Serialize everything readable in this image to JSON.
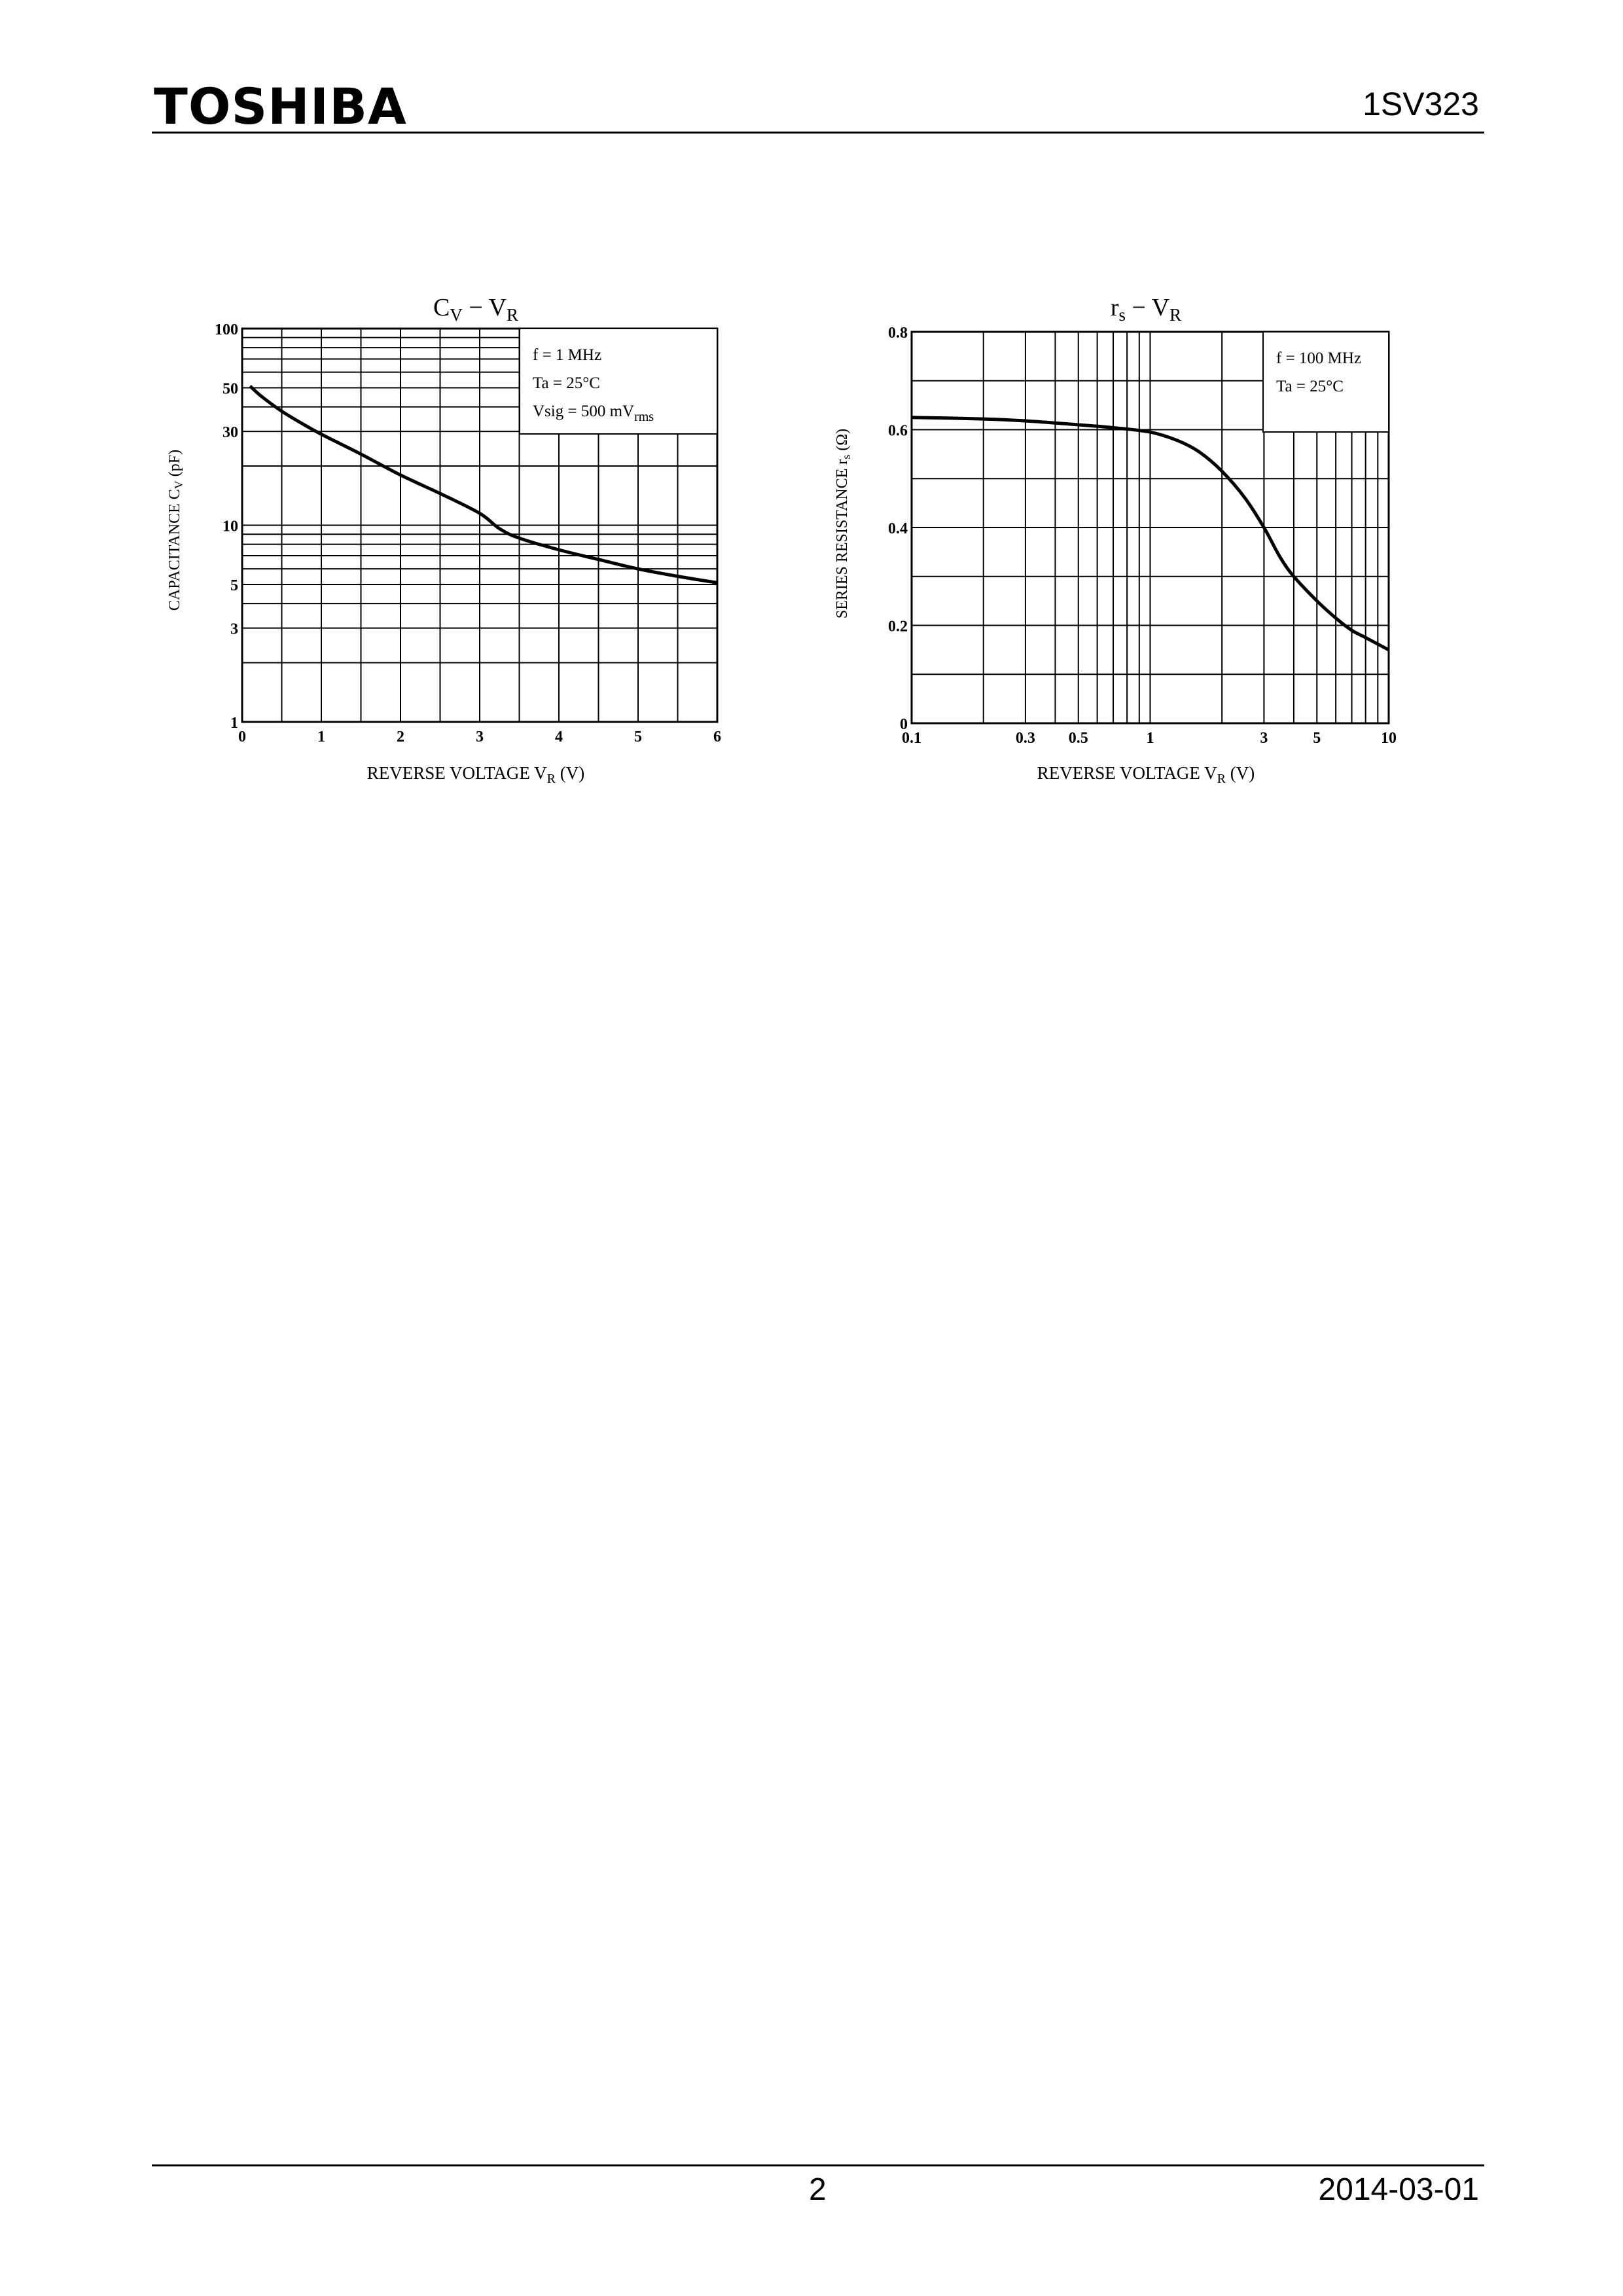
{
  "header": {
    "brand": "TOSHIBA",
    "part_number": "1SV323"
  },
  "footer": {
    "page": "2",
    "date": "2014-03-01"
  },
  "chart_data": [
    {
      "type": "line",
      "title": {
        "main": "C",
        "sub1": "V",
        "dash": " − V",
        "sub2": "R"
      },
      "xlabel": {
        "main": "REVERSE VOLTAGE   V",
        "sub": "R",
        "unit": "   (V)"
      },
      "ylabel": {
        "main": "CAPACITANCE   C",
        "sub": "V",
        "unit": "   (pF)"
      },
      "x_scale": "linear",
      "y_scale": "log",
      "xlim": [
        0,
        6
      ],
      "ylim": [
        1,
        100
      ],
      "x_ticks": [
        "0",
        "1",
        "2",
        "3",
        "4",
        "5",
        "6"
      ],
      "y_ticks": [
        "1",
        "3",
        "5",
        "10",
        "30",
        "50",
        "100"
      ],
      "grid": true,
      "legend_position": "top-right",
      "conditions": [
        {
          "text": "f = 1 MHz"
        },
        {
          "text": "Ta = 25°C"
        },
        {
          "text": "Vsig = 500 mV",
          "sub": "rms"
        }
      ],
      "series": [
        {
          "x": [
            0.1,
            0.25,
            0.5,
            0.75,
            1.0,
            1.5,
            2.0,
            2.5,
            3.0,
            3.25,
            3.5,
            4.0,
            4.5,
            5.0,
            5.5,
            6.0
          ],
          "y": [
            51,
            45,
            38,
            33,
            29,
            23,
            18,
            14.5,
            11.5,
            9.6,
            8.6,
            7.5,
            6.7,
            6.0,
            5.5,
            5.1
          ]
        }
      ]
    },
    {
      "type": "line",
      "title": {
        "main": "r",
        "sub1": "s",
        "dash": " − V",
        "sub2": "R"
      },
      "xlabel": {
        "main": "REVERSE VOLTAGE   V",
        "sub": "R",
        "unit": "   (V)"
      },
      "ylabel": {
        "main": "SERIES RESISTANCE   r",
        "sub": "s",
        "unit": "   (Ω)"
      },
      "x_scale": "log",
      "y_scale": "linear",
      "xlim": [
        0.1,
        10
      ],
      "ylim": [
        0,
        0.8
      ],
      "x_ticks": [
        "0.1",
        "0.3",
        "0.5",
        "1",
        "3",
        "5",
        "10"
      ],
      "y_ticks": [
        "0",
        "0.2",
        "0.4",
        "0.6",
        "0.8"
      ],
      "grid": true,
      "legend_position": "top-right",
      "conditions": [
        {
          "text": "f = 100 MHz"
        },
        {
          "text": "Ta = 25°C"
        }
      ],
      "series": [
        {
          "x": [
            0.1,
            0.2,
            0.3,
            0.5,
            0.7,
            1.0,
            1.3,
            1.6,
            2.0,
            2.5,
            3.0,
            3.5,
            4.0,
            5.0,
            6.0,
            7.0,
            8.0,
            10.0
          ],
          "y": [
            0.625,
            0.622,
            0.618,
            0.61,
            0.604,
            0.595,
            0.578,
            0.555,
            0.515,
            0.46,
            0.4,
            0.34,
            0.3,
            0.25,
            0.215,
            0.19,
            0.175,
            0.15
          ]
        }
      ]
    }
  ]
}
